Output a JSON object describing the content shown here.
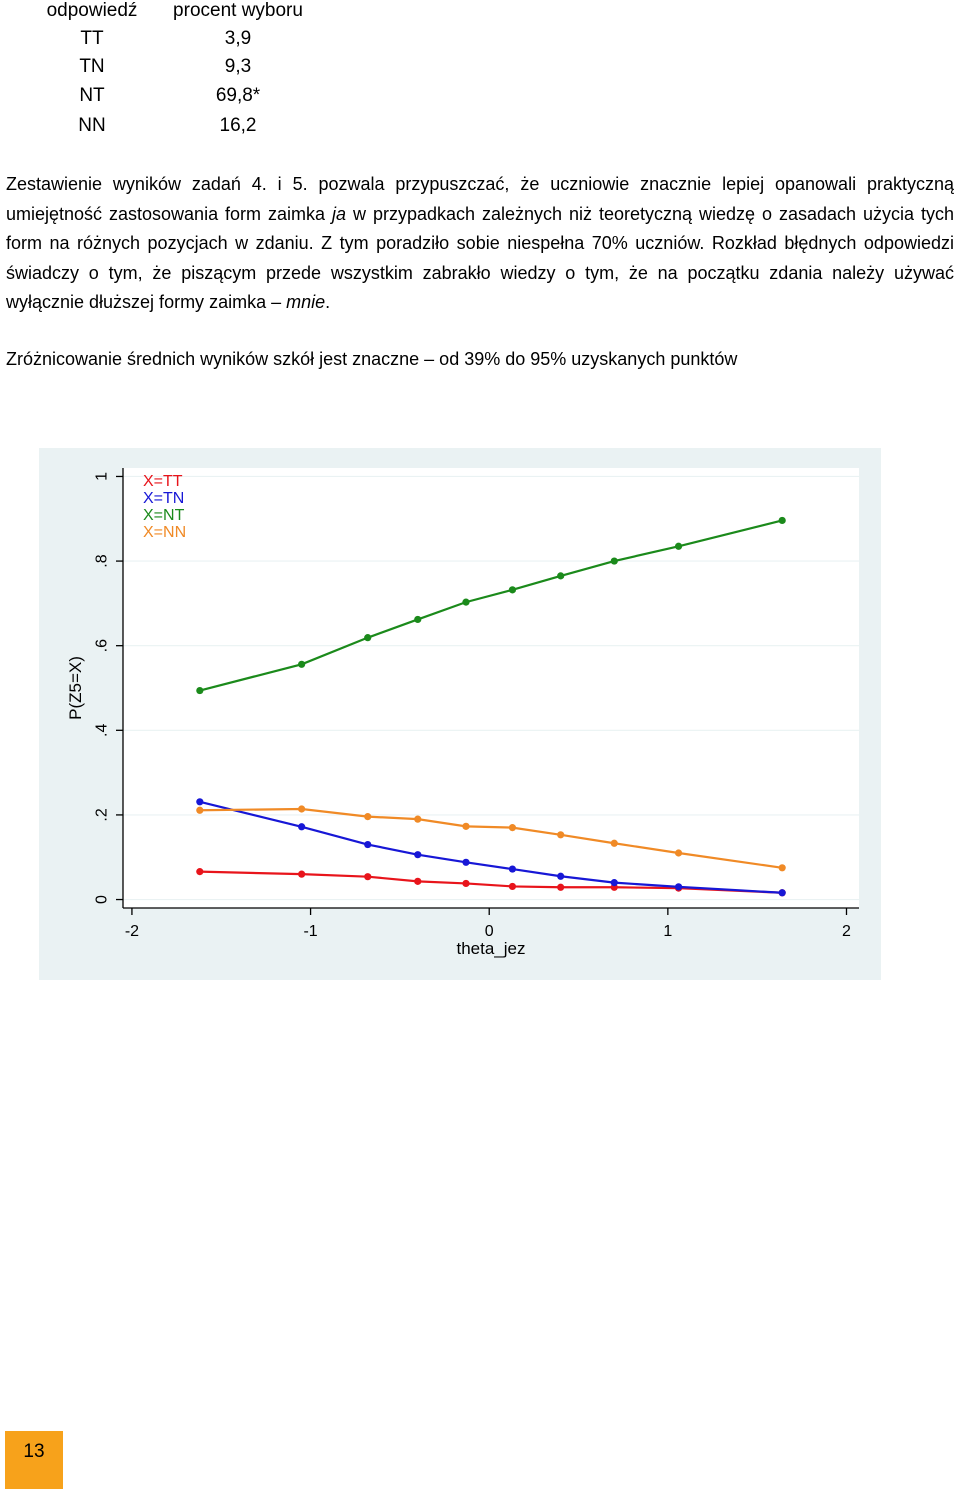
{
  "table": {
    "headers": [
      "odpowiedź",
      "procent wyboru"
    ],
    "rows": [
      {
        "answer": "TT",
        "percent": "3,9"
      },
      {
        "answer": "TN",
        "percent": "9,3"
      },
      {
        "answer": "NT",
        "percent": "69,8*"
      },
      {
        "answer": "NN",
        "percent": "16,2"
      }
    ]
  },
  "paragraph1": {
    "part1": "Zestawienie wyników zadań 4. i 5. pozwala przypuszczać, że uczniowie znacznie lepiej opanowali praktyczną umiejętność zastosowania form zaimka ",
    "italic1": "ja",
    "part2": " w przypadkach zależnych niż teoretyczną wiedzę o zasadach użycia tych form na różnych pozycjach w zdaniu. Z tym poradziło sobie niespełna 70% uczniów. Rozkład błędnych odpowiedzi świadczy o tym, że piszącym przede wszystkim zabrakło wiedzy o tym, że na początku zdania należy używać wyłącznie dłuższej formy zaimka – ",
    "italic2": "mnie",
    "part3": "."
  },
  "paragraph2": "Zróżnicowanie średnich wyników szkół jest znaczne – od 39% do 95% uzyskanych punktów",
  "chart_data": {
    "type": "line",
    "xlabel": "theta_jez",
    "ylabel": "P(Z5=X)",
    "xlim": [
      -2.05,
      2.07
    ],
    "ylim": [
      -0.02,
      1.02
    ],
    "xticks": [
      "-2",
      "-1",
      "0",
      "1",
      "2"
    ],
    "yticks": [
      "0",
      ".2",
      ".4",
      ".6",
      ".8",
      "1"
    ],
    "legend_position": "top-left",
    "x": [
      -1.62,
      -1.05,
      -0.68,
      -0.4,
      -0.13,
      0.13,
      0.4,
      0.7,
      1.06,
      1.64
    ],
    "series": [
      {
        "name": "X=TT",
        "color": "#e8141b",
        "values": [
          0.066,
          0.06,
          0.054,
          0.043,
          0.038,
          0.031,
          0.029,
          0.029,
          0.027,
          0.016
        ]
      },
      {
        "name": "X=TN",
        "color": "#1717d6",
        "values": [
          0.231,
          0.172,
          0.13,
          0.106,
          0.088,
          0.072,
          0.055,
          0.04,
          0.03,
          0.016
        ]
      },
      {
        "name": "X=NT",
        "color": "#1b8a1b",
        "values": [
          0.494,
          0.556,
          0.619,
          0.662,
          0.703,
          0.732,
          0.765,
          0.8,
          0.835,
          0.896
        ]
      },
      {
        "name": "X=NN",
        "color": "#f08a26",
        "values": [
          0.211,
          0.214,
          0.196,
          0.19,
          0.173,
          0.17,
          0.153,
          0.133,
          0.11,
          0.075
        ]
      }
    ],
    "colors": {
      "panel_bg": "#eaf2f3",
      "plot_bg": "#ffffff",
      "axis": "#000000",
      "grid": "#eaf2f3"
    }
  },
  "page_number": "13",
  "colors": {
    "page_number_bg": "#f7a21b"
  }
}
